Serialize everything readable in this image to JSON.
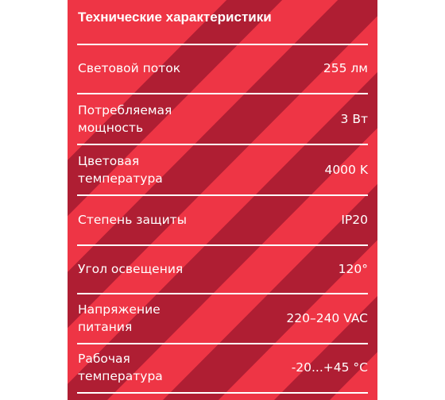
{
  "title": "Технические характеристики",
  "colors": {
    "panel": "#ee3545",
    "stripe_dark": "#a91c32",
    "text": "#ffffff"
  },
  "specs": [
    {
      "label_lines": [
        "Световой поток"
      ],
      "value": "255 лм"
    },
    {
      "label_lines": [
        "Потребляемая",
        "мощность"
      ],
      "value": "3 Вт"
    },
    {
      "label_lines": [
        "Цветовая",
        "температура"
      ],
      "value": "4000 K"
    },
    {
      "label_lines": [
        "Степень защиты"
      ],
      "value": "IP20"
    },
    {
      "label_lines": [
        "Угол освещения"
      ],
      "value": "120°"
    },
    {
      "label_lines": [
        "Напряжение",
        "питания"
      ],
      "value": "220–240 VAC"
    },
    {
      "label_lines": [
        "Рабочая",
        "температура"
      ],
      "value": "-20...+45 °C"
    }
  ]
}
